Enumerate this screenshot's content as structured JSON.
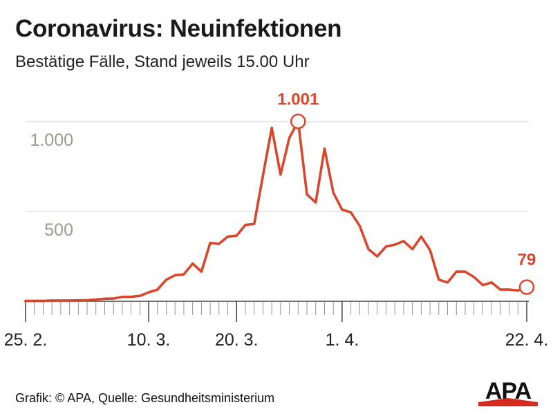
{
  "header": {
    "title": "Coronavirus: Neuinfektionen",
    "subtitle": "Bestätige Fälle, Stand jeweils 15.00 Uhr"
  },
  "footer": {
    "credit": "Grafik: © APA, Quelle: Gesundheitsministerium"
  },
  "logo": {
    "text": "APA",
    "color": "#d52b1e"
  },
  "colors": {
    "line": "#d8472b",
    "highlight_label": "#d8472b",
    "grid": "#dcdcdc",
    "axis": "#444444",
    "ytick": "#9a9a8e"
  },
  "chart_data": {
    "type": "line",
    "title": "Coronavirus: Neuinfektionen",
    "subtitle": "Bestätige Fälle, Stand jeweils 15.00 Uhr",
    "xlabel": "",
    "ylabel": "",
    "ylim": [
      0,
      1000
    ],
    "yticks": [
      {
        "value": 500,
        "label": "500"
      },
      {
        "value": 1000,
        "label": "1.000"
      }
    ],
    "xticks": [
      {
        "index": 0,
        "label": "25. 2."
      },
      {
        "index": 14,
        "label": "10. 3."
      },
      {
        "index": 24,
        "label": "20. 3."
      },
      {
        "index": 36,
        "label": "1. 4."
      },
      {
        "index": 57,
        "label": "22. 4."
      }
    ],
    "grid": true,
    "annotations": [
      {
        "index": 31,
        "label": "1.001"
      },
      {
        "index": 57,
        "label": "79"
      }
    ],
    "series": [
      {
        "values": [
          2,
          2,
          2,
          4,
          4,
          4,
          5,
          6,
          10,
          14,
          15,
          25,
          25,
          30,
          50,
          65,
          120,
          145,
          150,
          210,
          165,
          325,
          320,
          360,
          365,
          425,
          430,
          700,
          965,
          705,
          910,
          1001,
          595,
          550,
          850,
          605,
          510,
          495,
          420,
          290,
          250,
          305,
          315,
          335,
          290,
          360,
          285,
          120,
          105,
          165,
          165,
          135,
          90,
          105,
          65,
          65,
          60,
          79
        ]
      }
    ]
  }
}
